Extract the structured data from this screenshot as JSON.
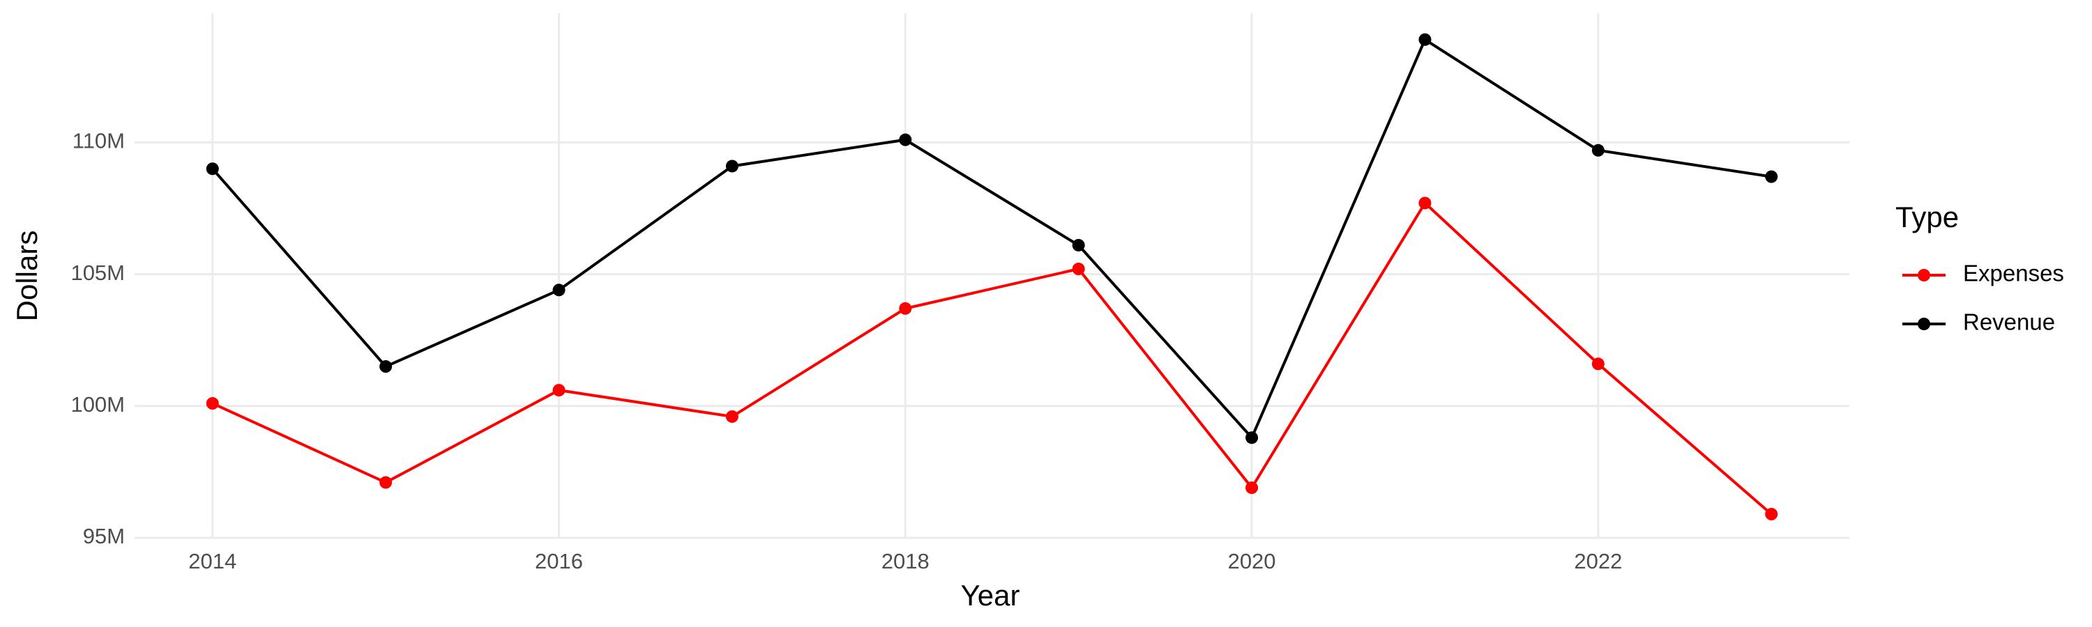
{
  "chart_data": {
    "type": "line",
    "x_label": "Year",
    "y_label": "Dollars",
    "legend_title": "Type",
    "x": [
      2014,
      2015,
      2016,
      2017,
      2018,
      2019,
      2020,
      2021,
      2022,
      2023
    ],
    "series": [
      {
        "name": "Expenses",
        "color": "#ff0000",
        "values": [
          100100000,
          97100000,
          100600000,
          99600000,
          103700000,
          105200000,
          96900000,
          107700000,
          101600000,
          95900000
        ]
      },
      {
        "name": "Revenue",
        "color": "#000000",
        "values": [
          109000000,
          101500000,
          104400000,
          109100000,
          110100000,
          106100000,
          98800000,
          113900000,
          109700000,
          108700000
        ]
      }
    ],
    "xlim": [
      2013.55,
      2023.45
    ],
    "xticks": [
      2014,
      2016,
      2018,
      2020,
      2022
    ],
    "ylim": [
      95000000,
      114900000
    ],
    "yticks": [
      {
        "value": 95000000,
        "label": "95M"
      },
      {
        "value": 100000000,
        "label": "100M"
      },
      {
        "value": 105000000,
        "label": "105M"
      },
      {
        "value": 110000000,
        "label": "110M"
      }
    ],
    "grid": true,
    "legend_position": "right"
  }
}
